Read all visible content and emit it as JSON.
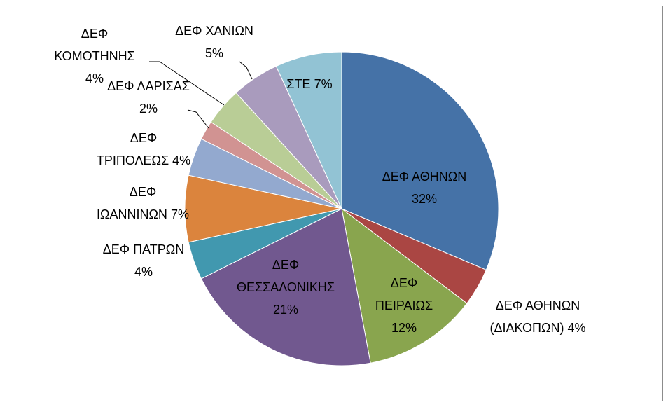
{
  "chart_data": {
    "type": "pie",
    "categories": [
      "ΔΕΦ ΑΘΗΝΩΝ",
      "ΔΕΦ ΑΘΗΝΩΝ (ΔΙΑΚΟΠΩΝ)",
      "ΔΕΦ ΠΕΙΡΑΙΩΣ",
      "ΔΕΦ ΘΕΣΣΑΛΟΝΙΚΗΣ",
      "ΔΕΦ ΠΑΤΡΩΝ",
      "ΔΕΦ ΙΩΑΝΝΙΝΩΝ",
      "ΔΕΦ ΤΡΙΠΟΛΕΩΣ",
      "ΔΕΦ ΛΑΡΙΣΑΣ",
      "ΔΕΦ ΚΟΜΟΤΗΝΗΣ",
      "ΔΕΦ ΧΑΝΙΩΝ",
      "ΣΤΕ"
    ],
    "values": [
      32,
      4,
      12,
      21,
      4,
      7,
      4,
      2,
      4,
      5,
      7
    ],
    "value_labels": [
      "32%",
      "4%",
      "12%",
      "21%",
      "4%",
      "7%",
      "4%",
      "2%",
      "4%",
      "5%",
      "7%"
    ],
    "colors": [
      "#4572a7",
      "#aa4643",
      "#89a54e",
      "#71588f",
      "#4198af",
      "#db843d",
      "#93a9cf",
      "#d19392",
      "#b9cd96",
      "#a99bbd",
      "#92c3d4"
    ]
  }
}
